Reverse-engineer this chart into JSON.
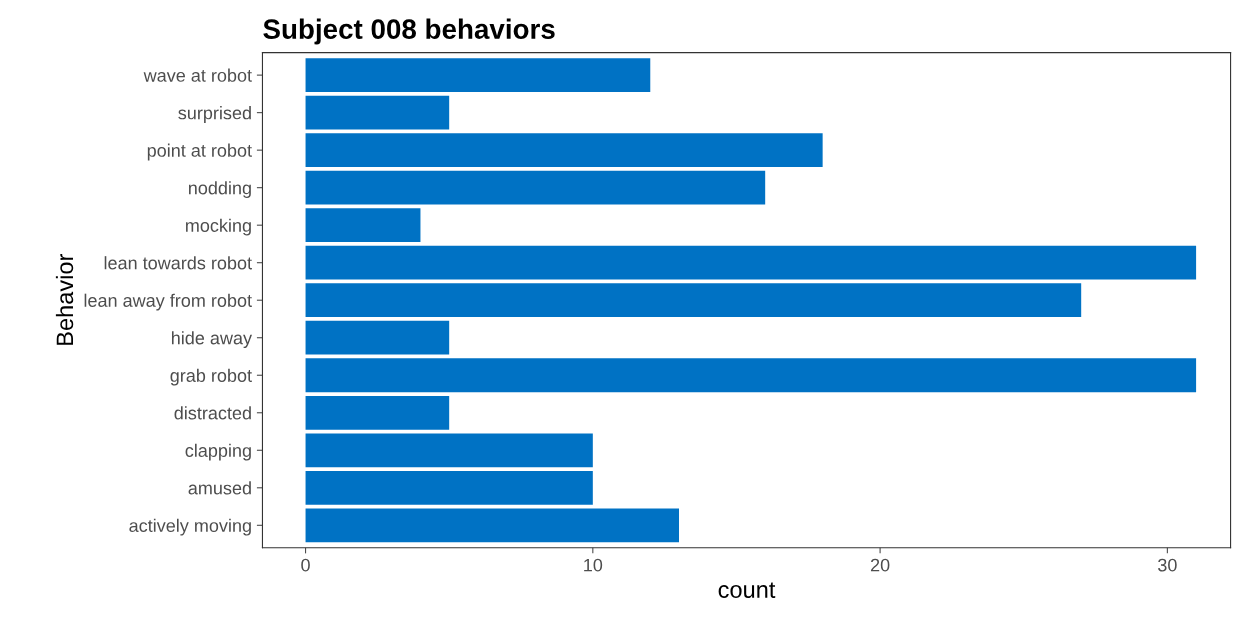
{
  "chart_data": {
    "type": "bar",
    "orientation": "horizontal",
    "title": "Subject 008 behaviors",
    "xlabel": "count",
    "ylabel": "Behavior",
    "categories": [
      "wave at robot",
      "surprised",
      "point at robot",
      "nodding",
      "mocking",
      "lean towards robot",
      "lean away from robot",
      "hide away",
      "grab robot",
      "distracted",
      "clapping",
      "amused",
      "actively moving"
    ],
    "values": [
      12,
      5,
      18,
      16,
      4,
      31,
      27,
      5,
      31,
      5,
      10,
      10,
      13
    ],
    "color": "#0072c4",
    "xlim": [
      -1.5,
      32.2
    ],
    "xticks": [
      0,
      10,
      20,
      30
    ],
    "grid": false,
    "legend": false
  }
}
